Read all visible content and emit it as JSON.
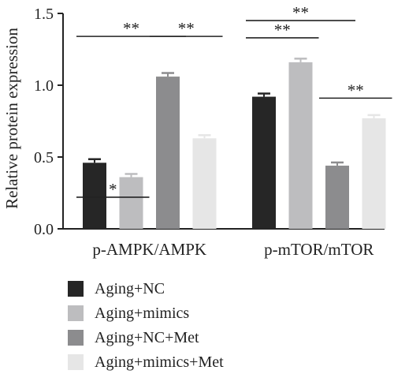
{
  "chart_data": {
    "type": "bar",
    "title": "",
    "xlabel": "",
    "ylabel": "Relative protein expression",
    "ylim": [
      0,
      1.5
    ],
    "yticks": [
      "0.0",
      "0.5",
      "1.0",
      "1.5"
    ],
    "ytick_values": [
      0,
      0.5,
      1.0,
      1.5
    ],
    "categories": [
      "p-AMPK/AMPK",
      "p-mTOR/mTOR"
    ],
    "series": [
      {
        "name": "Aging+NC",
        "color": "#262626",
        "values": [
          0.46,
          0.92
        ],
        "errors": [
          0.025,
          0.022
        ]
      },
      {
        "name": "Aging+mimics",
        "color": "#bdbdbf",
        "values": [
          0.36,
          1.16
        ],
        "errors": [
          0.022,
          0.025
        ]
      },
      {
        "name": "Aging+NC+Met",
        "color": "#8c8c8e",
        "values": [
          1.06,
          0.44
        ],
        "errors": [
          0.025,
          0.022
        ]
      },
      {
        "name": "Aging+mimics+Met",
        "color": "#e6e6e6",
        "values": [
          0.63,
          0.77
        ],
        "errors": [
          0.022,
          0.022
        ]
      }
    ],
    "significance": [
      {
        "label": "*",
        "category": 0,
        "from": 0,
        "to": 1,
        "level": 1
      },
      {
        "label": "**",
        "category": 0,
        "from": 0,
        "to": 2,
        "level": 2
      },
      {
        "label": "**",
        "category": 0,
        "from": 2,
        "to": 3,
        "level": 2
      },
      {
        "label": "**",
        "category": 1,
        "from": 0,
        "to": 2,
        "level": 2
      },
      {
        "label": "**",
        "category": 1,
        "from": 0,
        "to": 1,
        "level": 1.9
      },
      {
        "label": "**",
        "category": 1,
        "from": 2,
        "to": 3,
        "level": 0.94
      }
    ],
    "legend": {
      "position": "bottom-left"
    }
  }
}
